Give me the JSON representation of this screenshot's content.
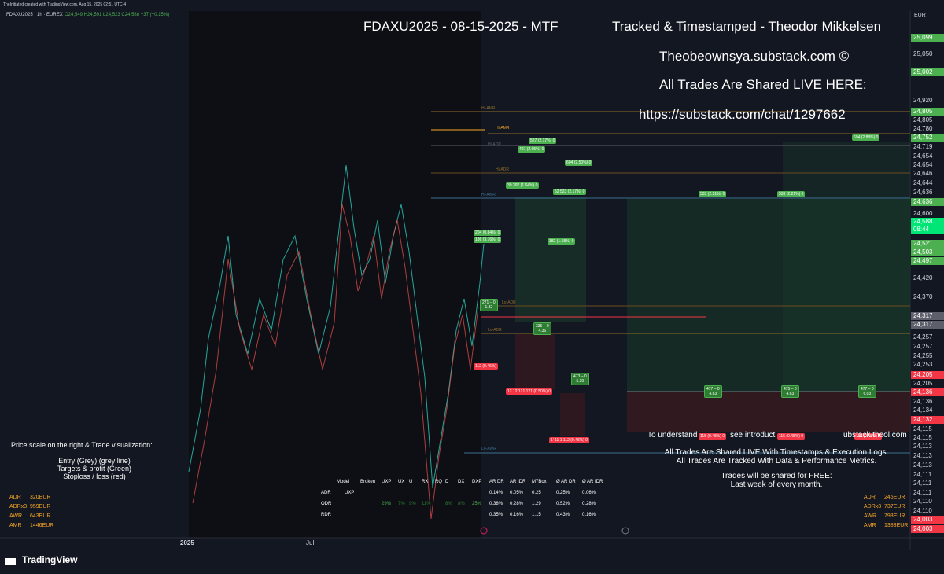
{
  "header": {
    "credit": "TheInitiated created with TradingView.com, Aug 15, 2025 02:51 UTC-4",
    "symbol": "FDAXU2025 · 1h · EUREX",
    "quote": "O24,549 H24,591 L24,523 C24,588 +37 (+0.15%)"
  },
  "overlay": {
    "title": "FDAXU2025 - 08-15-2025 - MTF",
    "lines": [
      "Tracked & Timestamped - Theodor Mikkelsen",
      "Theobeownsya.substack.com ©",
      "All Trades Are Shared LIVE HERE:",
      "https://substack.com/chat/1297662"
    ]
  },
  "currency": "EUR",
  "price_scale": [
    {
      "label": "25,099",
      "color": "#4caf50"
    },
    {
      "label": "25,050",
      "color": null
    },
    {
      "label": "25,002",
      "color": "#4caf50"
    },
    {
      "label": "24,920",
      "color": null
    },
    {
      "label": "24,805",
      "color": "#4caf50"
    },
    {
      "label": "24,805",
      "color": null
    },
    {
      "label": "24,780",
      "color": null
    },
    {
      "label": "24,752",
      "color": "#4caf50"
    },
    {
      "label": "24,719",
      "color": null
    },
    {
      "label": "24,654",
      "color": null
    },
    {
      "label": "24,654",
      "color": null
    },
    {
      "label": "24,646",
      "color": null
    },
    {
      "label": "24,644",
      "color": null
    },
    {
      "label": "24,636",
      "color": null
    },
    {
      "label": "24,636",
      "color": "#4caf50"
    },
    {
      "label": "24,600",
      "color": null
    },
    {
      "label": "24,588",
      "sub": "08:44",
      "color": "#00e676"
    },
    {
      "label": "24,521",
      "color": "#4caf50"
    },
    {
      "label": "24,503",
      "color": "#4caf50"
    },
    {
      "label": "24,497",
      "color": "#4caf50"
    },
    {
      "label": "24,420",
      "color": null
    },
    {
      "label": "24,370",
      "color": null
    },
    {
      "label": "24,317",
      "color": "#5d606b"
    },
    {
      "label": "24,317",
      "color": "#5d606b"
    },
    {
      "label": "24,257",
      "color": null
    },
    {
      "label": "24,257",
      "color": null
    },
    {
      "label": "24,255",
      "color": null
    },
    {
      "label": "24,253",
      "color": null
    },
    {
      "label": "24,205",
      "color": "#f23645"
    },
    {
      "label": "24,205",
      "color": null
    },
    {
      "label": "24,136",
      "color": "#f23645"
    },
    {
      "label": "24,136",
      "color": null
    },
    {
      "label": "24,134",
      "color": null
    },
    {
      "label": "24,132",
      "color": "#f23645"
    },
    {
      "label": "24,115",
      "color": null
    },
    {
      "label": "24,115",
      "color": null
    },
    {
      "label": "24,113",
      "color": null
    },
    {
      "label": "24,113",
      "color": null
    },
    {
      "label": "24,113",
      "color": null
    },
    {
      "label": "24,111",
      "color": null
    },
    {
      "label": "24,111",
      "color": null
    },
    {
      "label": "24,111",
      "color": null
    },
    {
      "label": "24,110",
      "color": null
    },
    {
      "label": "24,110",
      "color": null
    },
    {
      "label": "24,003",
      "color": "#f23645"
    },
    {
      "label": "24,003",
      "color": "#f23645"
    }
  ],
  "levels": [
    "Hi-AMR",
    "Hi-AMR",
    "Hi-ADR",
    "Hi-ADR",
    "Hi-AWR",
    "Lo-ADR",
    "Lo-ADR",
    "Lo-AWR"
  ],
  "targets": [
    "527 (2.17%) 0",
    "497 (2.05%) 0",
    "604 (2.50%) 0",
    "39 397 (1.64%) 0",
    "52 523 (2.17%) 0",
    "533 (2.21%) 0",
    "533 (2.21%) 0",
    "694 (2.88%) 0",
    "204 (0.84%) 0",
    "186 (3.76%) 0",
    "382 (1.58%) 0"
  ],
  "profits": [
    [
      "271 – 0",
      "1.82"
    ],
    [
      "335 – 0",
      "4.36"
    ],
    [
      "473 – 0",
      "5.39"
    ],
    [
      "477 – 0",
      "4.63"
    ],
    [
      "475 – 0",
      "4.63"
    ],
    [
      "477 – 0",
      "6.03"
    ]
  ],
  "stops": [
    "112 (0.46%)",
    "12 12 121 121 (0.50%) 0",
    "1' 11 1 112 (0.46%) 0",
    "115 (0.48%) 0",
    "115 (0.48%) 0",
    "115 (0.48%) 0"
  ],
  "legend": {
    "title": "Price scale on the right & Trade visualization:",
    "items": [
      "Entry (Grey) (grey line)",
      "Targets & profit (Green)",
      "Stoploss / loss (red)"
    ]
  },
  "stats_left": [
    [
      "ADR",
      "320EUR"
    ],
    [
      "ADRx3",
      "959EUR"
    ],
    [
      "AWR",
      "643EUR"
    ],
    [
      "AMR",
      "1446EUR"
    ]
  ],
  "stats_right": [
    [
      "ADR",
      "246EUR"
    ],
    [
      "ADRx3",
      "737EUR"
    ],
    [
      "AWR",
      "793EUR"
    ],
    [
      "AMR",
      "1383EUR"
    ]
  ],
  "notes": {
    "intro": [
      "To understand",
      "see introduct",
      "ubstack.theol",
      ".com"
    ],
    "lines": [
      "All Trades Are Shared LIVE With Timestamps & Execution Logs.",
      "All Trades Are Tracked With Data & Performance Metrics."
    ],
    "free": [
      "Trades will be shared for FREE:",
      "Last week of every month."
    ]
  },
  "table": {
    "headers": [
      "Model",
      "Broken",
      "UXP",
      "UX",
      "U",
      "RX",
      "RQ",
      "D",
      "DX",
      "DXP",
      "AR DR",
      "AR IDR",
      "M7Box",
      "Ø AR DR",
      "Ø AR IDR"
    ],
    "rows": [
      {
        "name": "ADR",
        "broken": "UXP",
        "values": [
          "0.14%",
          "0.05%",
          "0.25",
          "0.25%",
          "0.06%"
        ]
      },
      {
        "name": "ODR",
        "dist": [
          "29%",
          "7%",
          "9%",
          "11%",
          "8%",
          "8%",
          "25%"
        ],
        "values": [
          "0.38%",
          "0.28%",
          "1.29",
          "0.52%",
          "0.28%"
        ]
      },
      {
        "name": "RDR",
        "values": [
          "0.35%",
          "0.16%",
          "1.15",
          "0.43%",
          "0.16%"
        ]
      }
    ]
  },
  "x_axis": [
    "2025",
    "Jul"
  ],
  "footer": "TradingView"
}
